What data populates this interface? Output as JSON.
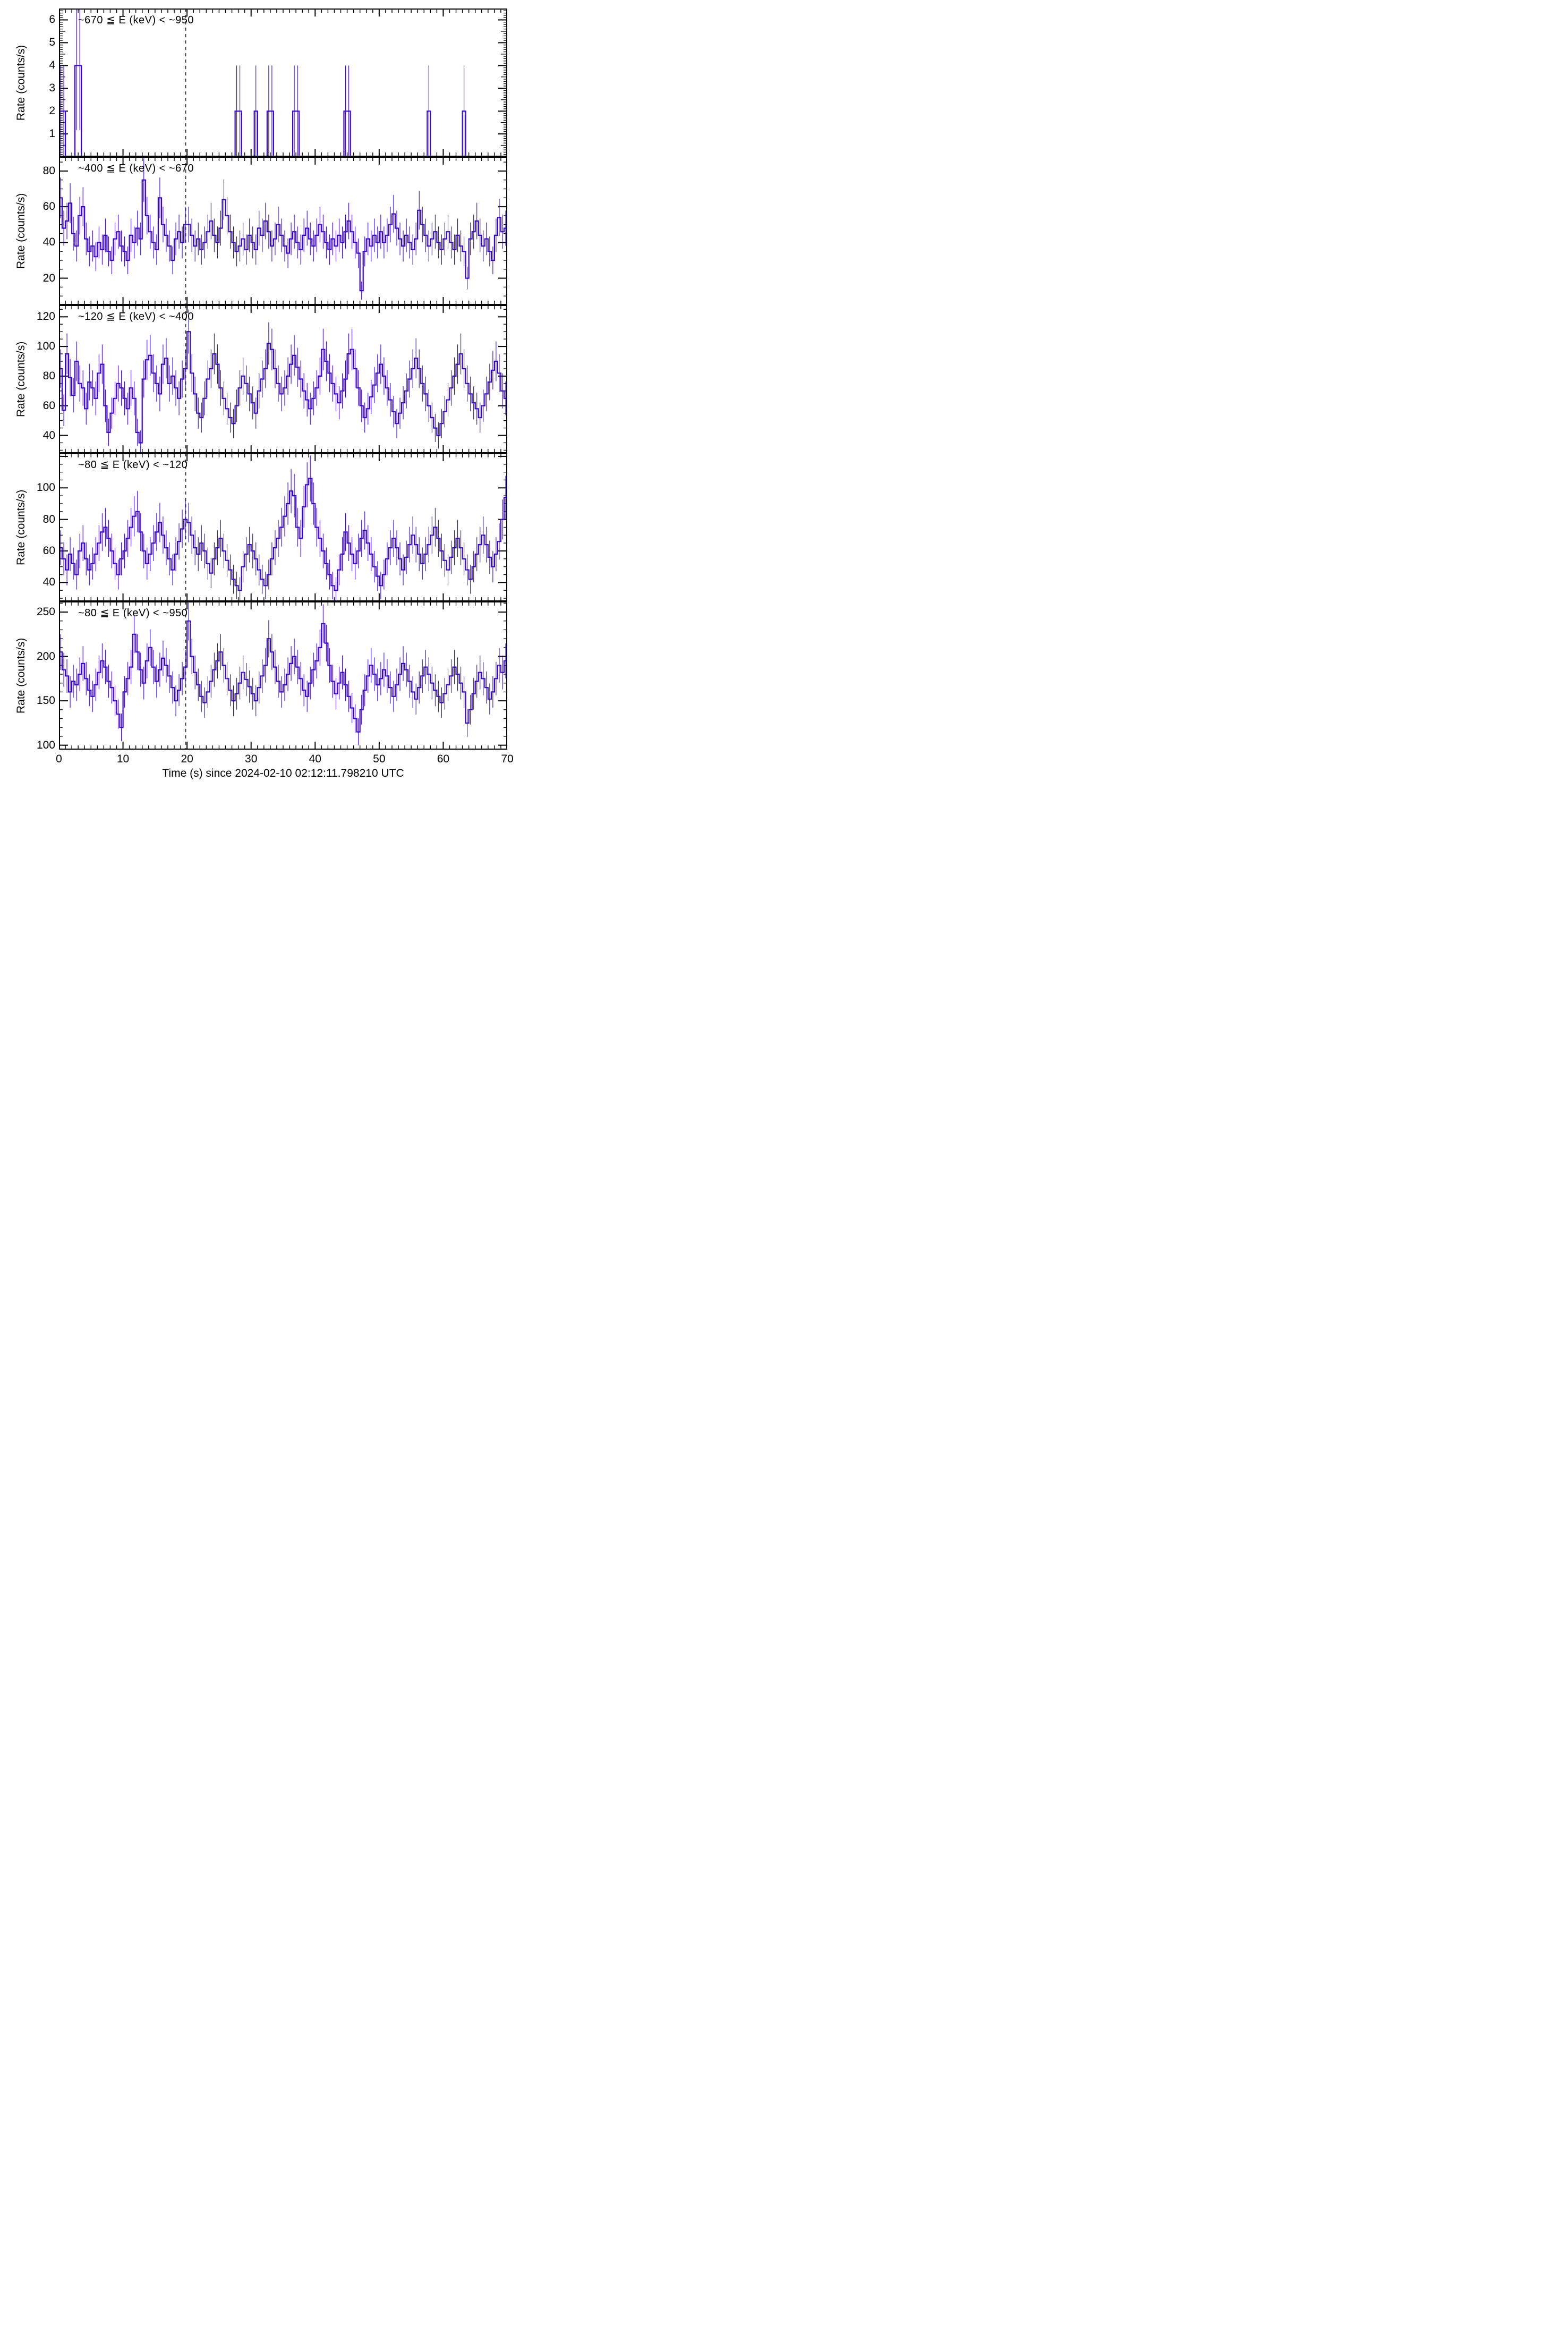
{
  "figure": {
    "background_color": "#ffffff",
    "axis_color": "#000000",
    "data_color": "#3805d5",
    "vline_color": "#000000",
    "vline_style": "dashed",
    "vline_time_s": 19.8
  },
  "chart_data": {
    "type": "line",
    "style": "step-histogram-with-error-bars",
    "bin_seconds": 0.5,
    "xlabel": "Time (s) since 2024-02-10 02:12:11.798210 UTC",
    "ylabel": "Rate (counts/s)",
    "xlim": [
      0,
      70
    ],
    "xticks_major": [
      0,
      10,
      20,
      30,
      40,
      50,
      60,
      70
    ],
    "xtick_minor_step": 1,
    "grid": "off",
    "legend": "none",
    "error_formula": "sigma = sqrt(2*rate); Poisson errors for 0.5 s bins, no bar drawn where rate = 0",
    "annotation_vline": "dashed vertical line at t = 19.8 s spanning all panels",
    "panels": [
      {
        "label": "~670 ≦ E (keV) < ~950",
        "ylim": [
          0,
          6.5
        ],
        "yticks": [
          0,
          1,
          2,
          3,
          4,
          5,
          6
        ],
        "ytick_minor_step": 0.1,
        "ytick_medium_step": 0.5,
        "values": [
          2,
          2,
          0,
          0,
          0,
          4,
          4,
          0,
          0,
          0,
          0,
          0,
          0,
          0,
          0,
          0,
          0,
          0,
          0,
          0,
          0,
          0,
          0,
          0,
          0,
          0,
          0,
          0,
          0,
          0,
          0,
          0,
          0,
          0,
          0,
          0,
          0,
          0,
          0,
          0,
          0,
          0,
          0,
          0,
          0,
          0,
          0,
          0,
          0,
          0,
          0,
          0,
          0,
          0,
          0,
          2,
          2,
          0,
          0,
          0,
          0,
          2,
          0,
          0,
          0,
          2,
          2,
          0,
          0,
          0,
          0,
          0,
          0,
          2,
          2,
          0,
          0,
          0,
          0,
          0,
          0,
          0,
          0,
          0,
          0,
          0,
          0,
          0,
          0,
          2,
          2,
          0,
          0,
          0,
          0,
          0,
          0,
          0,
          0,
          0,
          0,
          0,
          0,
          0,
          0,
          0,
          0,
          0,
          0,
          0,
          0,
          0,
          0,
          0,
          0,
          2,
          0,
          0,
          0,
          0,
          0,
          0,
          0,
          0,
          0,
          0,
          2,
          0,
          0,
          0,
          0,
          0,
          0,
          0,
          0,
          0,
          0,
          0,
          0,
          0
        ]
      },
      {
        "label": "~400 ≦ E (keV) < ~670",
        "ylim": [
          5,
          88
        ],
        "yticks": [
          20,
          40,
          60,
          80
        ],
        "ytick_minor_step": 5,
        "values": [
          65,
          48,
          52,
          62,
          45,
          38,
          55,
          60,
          42,
          35,
          38,
          32,
          40,
          36,
          44,
          35,
          30,
          42,
          46,
          38,
          35,
          30,
          44,
          40,
          48,
          42,
          75,
          55,
          46,
          40,
          36,
          65,
          50,
          44,
          38,
          30,
          42,
          46,
          40,
          50,
          50,
          44,
          38,
          42,
          36,
          40,
          46,
          52,
          44,
          40,
          48,
          64,
          55,
          46,
          40,
          35,
          38,
          42,
          36,
          44,
          40,
          36,
          48,
          44,
          52,
          46,
          38,
          42,
          50,
          44,
          38,
          34,
          42,
          46,
          40,
          36,
          44,
          48,
          42,
          38,
          44,
          50,
          46,
          40,
          36,
          42,
          38,
          44,
          40,
          46,
          52,
          46,
          40,
          34,
          13,
          35,
          42,
          38,
          44,
          40,
          46,
          40,
          44,
          50,
          56,
          48,
          42,
          38,
          44,
          40,
          36,
          42,
          58,
          50,
          44,
          38,
          42,
          46,
          40,
          36,
          42,
          46,
          40,
          36,
          44,
          38,
          35,
          20,
          42,
          46,
          52,
          44,
          38,
          42,
          35,
          30,
          44,
          54,
          46,
          48
        ]
      },
      {
        "label": "~120 ≦ E (keV) < ~400",
        "ylim": [
          28,
          128
        ],
        "yticks": [
          40,
          60,
          80,
          100,
          120
        ],
        "ytick_minor_step": 5,
        "values": [
          85,
          57,
          95,
          79,
          67,
          90,
          75,
          72,
          58,
          76,
          72,
          65,
          82,
          88,
          60,
          42,
          55,
          65,
          75,
          72,
          65,
          58,
          72,
          65,
          42,
          35,
          78,
          91,
          94,
          82,
          75,
          68,
          88,
          92,
          75,
          80,
          72,
          65,
          78,
          85,
          110,
          82,
          68,
          55,
          52,
          65,
          78,
          85,
          95,
          88,
          72,
          65,
          58,
          52,
          48,
          60,
          72,
          80,
          75,
          68,
          62,
          55,
          70,
          78,
          85,
          102,
          98,
          85,
          75,
          68,
          72,
          80,
          88,
          94,
          86,
          78,
          70,
          64,
          58,
          65,
          72,
          80,
          98,
          90,
          82,
          75,
          68,
          62,
          70,
          78,
          95,
          98,
          85,
          72,
          60,
          52,
          58,
          66,
          74,
          82,
          88,
          80,
          72,
          64,
          56,
          48,
          55,
          62,
          70,
          78,
          85,
          92,
          85,
          75,
          68,
          60,
          52,
          45,
          40,
          48,
          56,
          64,
          72,
          80,
          88,
          95,
          85,
          75,
          68,
          62,
          58,
          52,
          60,
          68,
          76,
          84,
          90,
          82,
          70,
          65
        ]
      },
      {
        "label": "~80 ≦ E (keV) < ~120",
        "ylim": [
          28,
          122
        ],
        "yticks": [
          40,
          60,
          80,
          100,
          120
        ],
        "ytick_minor_step": 5,
        "values": [
          62,
          55,
          48,
          58,
          52,
          45,
          60,
          65,
          55,
          48,
          52,
          58,
          65,
          72,
          75,
          68,
          60,
          52,
          45,
          55,
          60,
          68,
          75,
          82,
          85,
          72,
          60,
          52,
          58,
          65,
          72,
          78,
          70,
          62,
          55,
          48,
          58,
          66,
          74,
          80,
          78,
          70,
          62,
          58,
          65,
          60,
          52,
          46,
          55,
          62,
          68,
          60,
          54,
          48,
          42,
          38,
          35,
          50,
          58,
          64,
          60,
          55,
          48,
          42,
          38,
          45,
          55,
          62,
          68,
          75,
          82,
          90,
          98,
          95,
          75,
          68,
          88,
          102,
          106,
          90,
          75,
          68,
          60,
          52,
          45,
          38,
          35,
          48,
          58,
          72,
          65,
          58,
          52,
          60,
          68,
          73,
          65,
          58,
          50,
          44,
          38,
          45,
          55,
          62,
          68,
          62,
          55,
          48,
          56,
          64,
          70,
          64,
          58,
          52,
          58,
          64,
          70,
          75,
          68,
          60,
          54,
          48,
          56,
          62,
          68,
          62,
          55,
          48,
          42,
          50,
          58,
          64,
          70,
          64,
          56,
          50,
          58,
          66,
          80,
          94
        ]
      },
      {
        "label": "~80 ≦ E (keV) < ~950",
        "ylim": [
          95,
          262
        ],
        "yticks": [
          100,
          150,
          200,
          250
        ],
        "ytick_minor_step": 10,
        "values": [
          205,
          185,
          178,
          160,
          172,
          168,
          180,
          192,
          175,
          162,
          155,
          168,
          182,
          195,
          188,
          172,
          165,
          150,
          135,
          120,
          160,
          175,
          188,
          225,
          205,
          185,
          170,
          195,
          210,
          188,
          172,
          185,
          198,
          190,
          178,
          165,
          150,
          162,
          175,
          188,
          240,
          200,
          182,
          168,
          155,
          148,
          160,
          172,
          185,
          195,
          205,
          190,
          175,
          162,
          150,
          158,
          170,
          182,
          174,
          166,
          158,
          150,
          165,
          178,
          190,
          220,
          205,
          188,
          172,
          160,
          168,
          180,
          192,
          200,
          188,
          175,
          162,
          155,
          170,
          185,
          195,
          210,
          237,
          215,
          190,
          172,
          158,
          170,
          182,
          168,
          155,
          142,
          130,
          115,
          140,
          162,
          178,
          190,
          180,
          168,
          175,
          185,
          178,
          165,
          155,
          168,
          180,
          192,
          185,
          172,
          160,
          152,
          165,
          178,
          188,
          180,
          170,
          162,
          155,
          148,
          158,
          168,
          178,
          188,
          180,
          170,
          160,
          125,
          140,
          158,
          172,
          182,
          175,
          165,
          152,
          160,
          175,
          190,
          182,
          195
        ]
      }
    ]
  }
}
